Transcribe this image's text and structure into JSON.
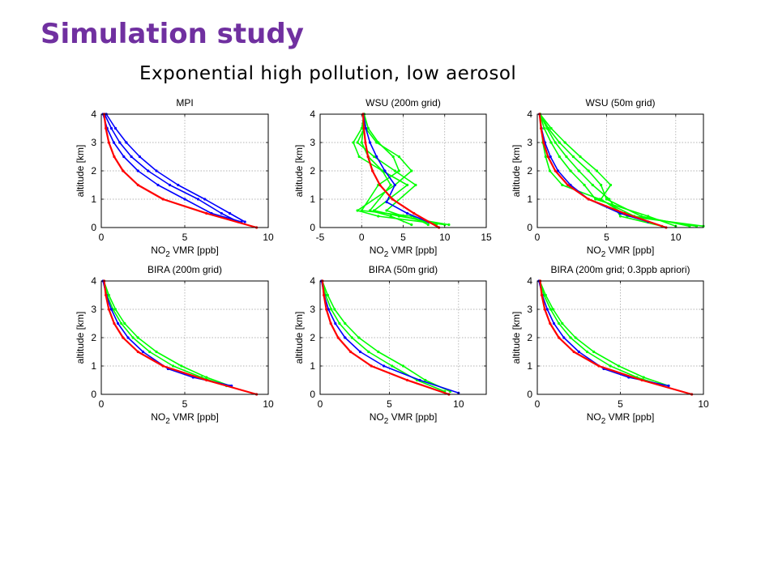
{
  "slide": {
    "title": "Simulation study",
    "subtitle": "Exponential high pollution, low aerosol"
  },
  "colors": {
    "title": "#7030a0",
    "blue_series": "#0000ff",
    "green_series": "#00ff00",
    "red_series": "#ff0000"
  },
  "chart_data": [
    {
      "type": "line",
      "title": "MPI",
      "xlabel": "NO2 VMR [ppb]",
      "ylabel": "altitude [km]",
      "xlim": [
        0,
        10
      ],
      "ylim": [
        0,
        4
      ],
      "xticks": [
        0,
        5,
        10
      ],
      "yticks": [
        0,
        1,
        2,
        3,
        4
      ],
      "grid": true,
      "series": [
        {
          "color": "#0000ff",
          "marker": "dot",
          "profiles": [
            {
              "x": [
                0.1,
                0.35,
                0.75,
                1.35,
                2.2,
                3.4,
                5.0,
                6.6,
                8.4
              ],
              "y": [
                4,
                3.5,
                3.0,
                2.5,
                2.0,
                1.5,
                1.0,
                0.5,
                0.2
              ]
            },
            {
              "x": [
                0.2,
                0.6,
                1.1,
                1.8,
                2.8,
                4.1,
                5.8,
                7.2,
                8.2
              ],
              "y": [
                4,
                3.5,
                3.0,
                2.5,
                2.0,
                1.5,
                1.0,
                0.5,
                0.2
              ]
            },
            {
              "x": [
                0.3,
                0.85,
                1.5,
                2.3,
                3.3,
                4.6,
                6.2,
                7.7,
                8.6
              ],
              "y": [
                4,
                3.5,
                3.0,
                2.5,
                2.0,
                1.5,
                1.0,
                0.5,
                0.2
              ]
            }
          ]
        },
        {
          "color": "#ff0000",
          "marker": "dot",
          "profiles": [
            {
              "x": [
                0.17,
                0.27,
                0.45,
                0.77,
                1.3,
                2.2,
                3.7,
                6.3,
                9.3
              ],
              "y": [
                4,
                3.5,
                3.0,
                2.5,
                2.0,
                1.5,
                1.0,
                0.5,
                0
              ]
            }
          ]
        }
      ]
    },
    {
      "type": "line",
      "title": "WSU (200m grid)",
      "xlabel": "NO2 VMR [ppb]",
      "ylabel": "altitude [km]",
      "xlim": [
        -5,
        15
      ],
      "ylim": [
        0,
        4
      ],
      "xticks": [
        -5,
        0,
        5,
        10,
        15
      ],
      "yticks": [
        0,
        1,
        2,
        3,
        4
      ],
      "grid": true,
      "series": [
        {
          "color": "#00ff00",
          "marker": "dot",
          "profiles": [
            {
              "x": [
                0.3,
                0.0,
                -1.0,
                -0.3,
                2.5,
                3.5,
                1.0,
                3.5,
                6.0
              ],
              "y": [
                4,
                3.5,
                3.0,
                2.5,
                2.0,
                1.5,
                0.6,
                0.4,
                0.1
              ]
            },
            {
              "x": [
                0.3,
                0.5,
                1.8,
                4.5,
                6.0,
                4.0,
                -0.5,
                2.0,
                10.0
              ],
              "y": [
                4,
                3.5,
                3.0,
                2.5,
                2.0,
                1.5,
                0.6,
                0.4,
                0.1
              ]
            },
            {
              "x": [
                0.3,
                0.2,
                0.0,
                0.8,
                2.5,
                5.5,
                1.5,
                4.5,
                10.5
              ],
              "y": [
                4,
                3.5,
                3.0,
                2.5,
                2.0,
                1.5,
                0.6,
                0.4,
                0.1
              ]
            },
            {
              "x": [
                0.3,
                0.8,
                2.0,
                3.8,
                4.5,
                2.0,
                0.0,
                6.0,
                8.0
              ],
              "y": [
                4,
                3.5,
                3.0,
                2.5,
                2.0,
                1.5,
                0.6,
                0.4,
                0.1
              ]
            },
            {
              "x": [
                0.3,
                0.3,
                -0.5,
                1.5,
                4.0,
                6.5,
                3.0,
                5.0,
                9.0
              ],
              "y": [
                4,
                3.5,
                3.0,
                2.5,
                2.0,
                1.5,
                0.6,
                0.4,
                0.1
              ]
            }
          ]
        },
        {
          "color": "#0000ff",
          "marker": "dot",
          "profiles": [
            {
              "x": [
                0.2,
                0.5,
                1.0,
                1.8,
                2.8,
                4.0,
                3.0,
                5.5,
                8.0
              ],
              "y": [
                4,
                3.5,
                3.0,
                2.5,
                2.0,
                1.5,
                0.9,
                0.5,
                0.2
              ]
            }
          ]
        },
        {
          "color": "#ff0000",
          "marker": "dot",
          "profiles": [
            {
              "x": [
                0.17,
                0.27,
                0.45,
                0.77,
                1.3,
                2.2,
                3.7,
                6.3,
                9.3
              ],
              "y": [
                4,
                3.5,
                3.0,
                2.5,
                2.0,
                1.5,
                1.0,
                0.5,
                0
              ]
            }
          ]
        }
      ]
    },
    {
      "type": "line",
      "title": "WSU (50m grid)",
      "xlabel": "NO2 VMR [ppb]",
      "ylabel": "altitude [km]",
      "xlim": [
        0,
        12
      ],
      "ylim": [
        0,
        4
      ],
      "xticks": [
        0,
        5,
        10
      ],
      "yticks": [
        0,
        1,
        2,
        3,
        4
      ],
      "grid": true,
      "series": [
        {
          "color": "#00ff00",
          "marker": "dot",
          "profiles": [
            {
              "x": [
                0.2,
                0.3,
                0.4,
                0.6,
                0.9,
                1.8,
                4.5,
                7.0,
                11.5
              ],
              "y": [
                4,
                3.5,
                3.0,
                2.5,
                2.0,
                1.5,
                1.0,
                0.4,
                0.05
              ]
            },
            {
              "x": [
                0.2,
                0.8,
                1.6,
                2.6,
                3.7,
                4.6,
                5.0,
                7.5,
                11.0
              ],
              "y": [
                4,
                3.5,
                3.0,
                2.5,
                2.0,
                1.5,
                1.0,
                0.4,
                0.05
              ]
            },
            {
              "x": [
                0.2,
                1.0,
                2.0,
                3.1,
                4.3,
                5.3,
                4.6,
                6.5,
                12.0
              ],
              "y": [
                4,
                3.5,
                3.0,
                2.5,
                2.0,
                1.5,
                1.0,
                0.4,
                0.05
              ]
            },
            {
              "x": [
                0.2,
                0.5,
                1.0,
                1.6,
                2.4,
                3.4,
                4.2,
                8.0,
                10.0
              ],
              "y": [
                4,
                3.5,
                3.0,
                2.5,
                2.0,
                1.5,
                1.0,
                0.4,
                0.05
              ]
            },
            {
              "x": [
                0.2,
                0.7,
                1.3,
                2.1,
                3.0,
                4.0,
                5.2,
                6.0,
                9.0
              ],
              "y": [
                4,
                3.5,
                3.0,
                2.5,
                2.0,
                1.5,
                1.0,
                0.4,
                0.05
              ]
            }
          ]
        },
        {
          "color": "#0000ff",
          "marker": "dot",
          "profiles": [
            {
              "x": [
                0.15,
                0.3,
                0.55,
                0.95,
                1.5,
                2.4,
                3.7,
                6.0,
                8.0
              ],
              "y": [
                4,
                3.5,
                3.0,
                2.5,
                2.0,
                1.5,
                1.0,
                0.5,
                0.2
              ]
            }
          ]
        },
        {
          "color": "#ff0000",
          "marker": "dot",
          "profiles": [
            {
              "x": [
                0.17,
                0.27,
                0.45,
                0.77,
                1.3,
                2.2,
                3.7,
                6.3,
                9.3
              ],
              "y": [
                4,
                3.5,
                3.0,
                2.5,
                2.0,
                1.5,
                1.0,
                0.5,
                0
              ]
            }
          ]
        }
      ]
    },
    {
      "type": "line",
      "title": "BIRA (200m grid)",
      "xlabel": "NO2 VMR [ppb]",
      "ylabel": "altitude [km]",
      "xlim": [
        0,
        10
      ],
      "ylim": [
        0,
        4
      ],
      "xticks": [
        0,
        5,
        10
      ],
      "yticks": [
        0,
        1,
        2,
        3,
        4
      ],
      "grid": true,
      "series": [
        {
          "color": "#00ff00",
          "marker": "dot",
          "profiles": [
            {
              "x": [
                0.15,
                0.35,
                0.7,
                1.2,
                1.9,
                2.9,
                4.3,
                6.0,
                7.5
              ],
              "y": [
                4,
                3.5,
                3.0,
                2.5,
                2.0,
                1.5,
                1.0,
                0.6,
                0.3
              ]
            },
            {
              "x": [
                0.15,
                0.45,
                0.85,
                1.4,
                2.2,
                3.3,
                4.8,
                6.3,
                7.7
              ],
              "y": [
                4,
                3.5,
                3.0,
                2.5,
                2.0,
                1.5,
                1.0,
                0.6,
                0.3
              ]
            }
          ]
        },
        {
          "color": "#0000ff",
          "marker": "dot",
          "profiles": [
            {
              "x": [
                0.1,
                0.3,
                0.6,
                1.0,
                1.6,
                2.5,
                4.0,
                5.5,
                7.8
              ],
              "y": [
                4,
                3.5,
                3.0,
                2.5,
                2.0,
                1.5,
                0.9,
                0.6,
                0.3
              ]
            }
          ]
        },
        {
          "color": "#ff0000",
          "marker": "dot",
          "profiles": [
            {
              "x": [
                0.17,
                0.27,
                0.45,
                0.77,
                1.3,
                2.2,
                3.7,
                6.3,
                9.3
              ],
              "y": [
                4,
                3.5,
                3.0,
                2.5,
                2.0,
                1.5,
                1.0,
                0.5,
                0
              ]
            }
          ]
        }
      ]
    },
    {
      "type": "line",
      "title": "BIRA (50m grid)",
      "xlabel": "NO2 VMR [ppb]",
      "ylabel": "altitude [km]",
      "xlim": [
        0,
        12
      ],
      "ylim": [
        0,
        4
      ],
      "xticks": [
        0,
        5,
        10
      ],
      "yticks": [
        0,
        1,
        2,
        3,
        4
      ],
      "grid": true,
      "series": [
        {
          "color": "#00ff00",
          "marker": "dot",
          "profiles": [
            {
              "x": [
                0.15,
                0.4,
                0.8,
                1.4,
                2.3,
                3.5,
                5.2,
                7.0,
                9.0
              ],
              "y": [
                4,
                3.5,
                3.0,
                2.5,
                2.0,
                1.5,
                1.0,
                0.5,
                0.1
              ]
            },
            {
              "x": [
                0.15,
                0.55,
                1.05,
                1.8,
                2.8,
                4.2,
                6.0,
                7.6,
                9.4
              ],
              "y": [
                4,
                3.5,
                3.0,
                2.5,
                2.0,
                1.5,
                1.0,
                0.5,
                0.1
              ]
            }
          ]
        },
        {
          "color": "#0000ff",
          "marker": "dot",
          "profiles": [
            {
              "x": [
                0.1,
                0.3,
                0.6,
                1.1,
                1.8,
                2.9,
                4.6,
                7.2,
                10.0
              ],
              "y": [
                4,
                3.5,
                3.0,
                2.5,
                2.0,
                1.5,
                1.0,
                0.5,
                0.05
              ]
            }
          ]
        },
        {
          "color": "#ff0000",
          "marker": "dot",
          "profiles": [
            {
              "x": [
                0.17,
                0.27,
                0.45,
                0.77,
                1.3,
                2.2,
                3.7,
                6.3,
                9.3
              ],
              "y": [
                4,
                3.5,
                3.0,
                2.5,
                2.0,
                1.5,
                1.0,
                0.5,
                0
              ]
            }
          ]
        }
      ]
    },
    {
      "type": "line",
      "title": "BIRA (200m grid; 0.3ppb apriori)",
      "xlabel": "NO2 VMR [ppb]",
      "ylabel": "altitude [km]",
      "xlim": [
        0,
        10
      ],
      "ylim": [
        0,
        4
      ],
      "xticks": [
        0,
        5,
        10
      ],
      "yticks": [
        0,
        1,
        2,
        3,
        4
      ],
      "grid": true,
      "series": [
        {
          "color": "#00ff00",
          "marker": "dot",
          "profiles": [
            {
              "x": [
                0.15,
                0.4,
                0.8,
                1.3,
                2.0,
                3.0,
                4.4,
                6.0,
                7.6
              ],
              "y": [
                4,
                3.5,
                3.0,
                2.5,
                2.0,
                1.5,
                1.0,
                0.6,
                0.3
              ]
            },
            {
              "x": [
                0.15,
                0.5,
                0.95,
                1.5,
                2.3,
                3.4,
                4.9,
                6.4,
                7.9
              ],
              "y": [
                4,
                3.5,
                3.0,
                2.5,
                2.0,
                1.5,
                1.0,
                0.6,
                0.3
              ]
            }
          ]
        },
        {
          "color": "#0000ff",
          "marker": "dot",
          "profiles": [
            {
              "x": [
                0.1,
                0.3,
                0.6,
                1.0,
                1.6,
                2.5,
                4.0,
                5.5,
                7.9
              ],
              "y": [
                4,
                3.5,
                3.0,
                2.5,
                2.0,
                1.5,
                0.9,
                0.6,
                0.3
              ]
            }
          ]
        },
        {
          "color": "#ff0000",
          "marker": "dot",
          "profiles": [
            {
              "x": [
                0.17,
                0.27,
                0.45,
                0.77,
                1.3,
                2.2,
                3.7,
                6.3,
                9.3
              ],
              "y": [
                4,
                3.5,
                3.0,
                2.5,
                2.0,
                1.5,
                1.0,
                0.5,
                0
              ]
            }
          ]
        }
      ]
    }
  ]
}
